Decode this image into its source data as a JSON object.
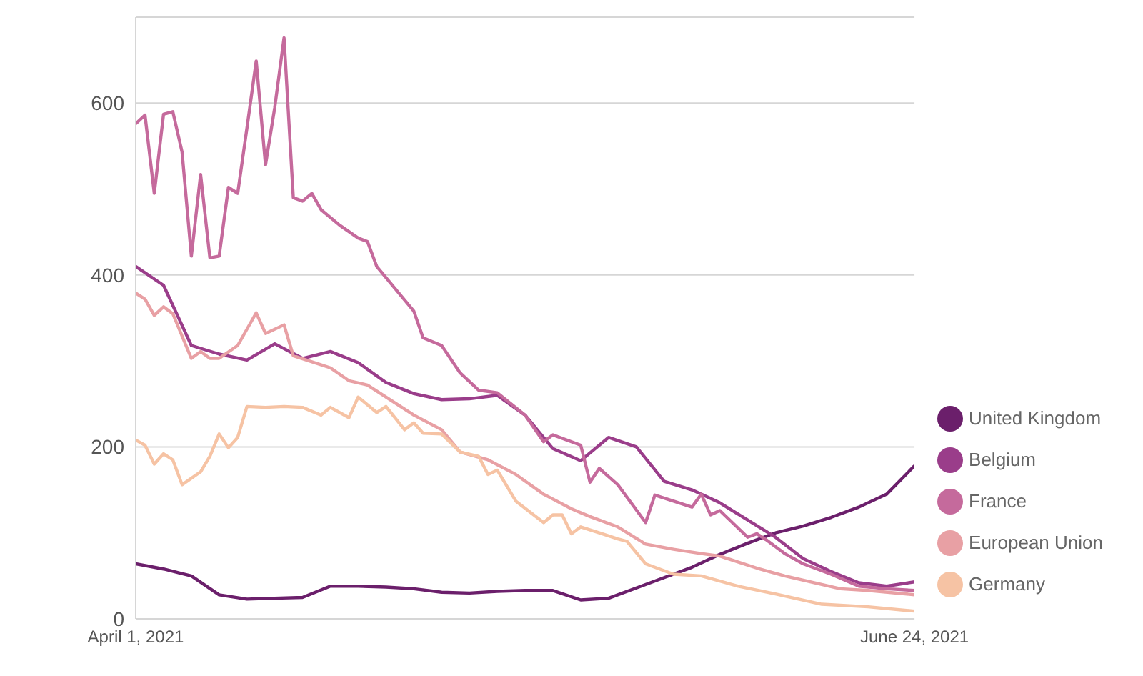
{
  "chart_data": {
    "type": "line",
    "xlim": [
      "2021-04-01",
      "2021-06-24"
    ],
    "xticks": [
      {
        "value": "2021-04-01",
        "label": "April 1, 2021"
      },
      {
        "value": "2021-06-24",
        "label": "June 24, 2021"
      }
    ],
    "ylim": [
      0,
      700
    ],
    "yticks": [
      0,
      200,
      400,
      600
    ],
    "grid": "y",
    "legend": "bottom right",
    "series": [
      {
        "name": "United Kingdom",
        "color": "#6b1f6b",
        "x": [
          "2021-04-01",
          "2021-04-04",
          "2021-04-07",
          "2021-04-10",
          "2021-04-13",
          "2021-04-16",
          "2021-04-19",
          "2021-04-22",
          "2021-04-25",
          "2021-04-28",
          "2021-05-01",
          "2021-05-04",
          "2021-05-07",
          "2021-05-10",
          "2021-05-13",
          "2021-05-16",
          "2021-05-19",
          "2021-05-22",
          "2021-05-25",
          "2021-05-28",
          "2021-05-31",
          "2021-06-03",
          "2021-06-06",
          "2021-06-09",
          "2021-06-12",
          "2021-06-15",
          "2021-06-18",
          "2021-06-21",
          "2021-06-24"
        ],
        "values": [
          64,
          58,
          50,
          28,
          23,
          24,
          25,
          38,
          38,
          37,
          35,
          31,
          30,
          32,
          33,
          33,
          22,
          24,
          36,
          48,
          60,
          75,
          88,
          100,
          108,
          118,
          130,
          145,
          178
        ]
      },
      {
        "name": "Belgium",
        "color": "#9a3d8a",
        "x": [
          "2021-04-01",
          "2021-04-04",
          "2021-04-07",
          "2021-04-10",
          "2021-04-13",
          "2021-04-16",
          "2021-04-19",
          "2021-04-22",
          "2021-04-25",
          "2021-04-28",
          "2021-05-01",
          "2021-05-04",
          "2021-05-07",
          "2021-05-10",
          "2021-05-13",
          "2021-05-16",
          "2021-05-19",
          "2021-05-22",
          "2021-05-25",
          "2021-05-28",
          "2021-05-31",
          "2021-06-03",
          "2021-06-06",
          "2021-06-09",
          "2021-06-12",
          "2021-06-15",
          "2021-06-18",
          "2021-06-21",
          "2021-06-24"
        ],
        "values": [
          410,
          388,
          318,
          308,
          301,
          320,
          303,
          311,
          298,
          275,
          262,
          255,
          256,
          260,
          237,
          198,
          184,
          211,
          200,
          160,
          150,
          135,
          115,
          95,
          70,
          55,
          42,
          38,
          43
        ]
      },
      {
        "name": "France",
        "color": "#c56a9c",
        "x": [
          "2021-04-01",
          "2021-04-02",
          "2021-04-03",
          "2021-04-04",
          "2021-04-05",
          "2021-04-06",
          "2021-04-07",
          "2021-04-08",
          "2021-04-09",
          "2021-04-10",
          "2021-04-11",
          "2021-04-12",
          "2021-04-13",
          "2021-04-14",
          "2021-04-15",
          "2021-04-16",
          "2021-04-17",
          "2021-04-18",
          "2021-04-19",
          "2021-04-20",
          "2021-04-21",
          "2021-04-23",
          "2021-04-25",
          "2021-04-26",
          "2021-04-27",
          "2021-05-01",
          "2021-05-02",
          "2021-05-04",
          "2021-05-06",
          "2021-05-08",
          "2021-05-10",
          "2021-05-13",
          "2021-05-15",
          "2021-05-16",
          "2021-05-19",
          "2021-05-20",
          "2021-05-21",
          "2021-05-23",
          "2021-05-26",
          "2021-05-27",
          "2021-05-31",
          "2021-06-01",
          "2021-06-02",
          "2021-06-03",
          "2021-06-06",
          "2021-06-07",
          "2021-06-08",
          "2021-06-10",
          "2021-06-12",
          "2021-06-15",
          "2021-06-18",
          "2021-06-21",
          "2021-06-24"
        ],
        "values": [
          576,
          586,
          495,
          587,
          590,
          543,
          422,
          517,
          420,
          422,
          502,
          495,
          571,
          649,
          528,
          595,
          676,
          490,
          486,
          495,
          476,
          458,
          443,
          439,
          410,
          358,
          327,
          318,
          286,
          266,
          263,
          237,
          206,
          214,
          202,
          159,
          175,
          156,
          112,
          144,
          130,
          145,
          121,
          126,
          95,
          99,
          92,
          76,
          64,
          52,
          38,
          35,
          33
        ]
      },
      {
        "name": "European Union",
        "color": "#e8a0a4",
        "x": [
          "2021-04-01",
          "2021-04-02",
          "2021-04-03",
          "2021-04-04",
          "2021-04-05",
          "2021-04-06",
          "2021-04-07",
          "2021-04-08",
          "2021-04-09",
          "2021-04-10",
          "2021-04-12",
          "2021-04-14",
          "2021-04-15",
          "2021-04-17",
          "2021-04-18",
          "2021-04-22",
          "2021-04-24",
          "2021-04-26",
          "2021-05-01",
          "2021-05-04",
          "2021-05-06",
          "2021-05-09",
          "2021-05-12",
          "2021-05-15",
          "2021-05-18",
          "2021-05-20",
          "2021-05-23",
          "2021-05-26",
          "2021-05-29",
          "2021-06-01",
          "2021-06-03",
          "2021-06-07",
          "2021-06-10",
          "2021-06-16",
          "2021-06-19",
          "2021-06-24"
        ],
        "values": [
          379,
          372,
          353,
          363,
          355,
          329,
          303,
          311,
          303,
          303,
          318,
          356,
          332,
          342,
          306,
          292,
          277,
          272,
          237,
          220,
          194,
          185,
          168,
          145,
          128,
          119,
          107,
          87,
          81,
          76,
          73,
          59,
          50,
          35,
          33,
          28
        ]
      },
      {
        "name": "Germany",
        "color": "#f6c3a4",
        "x": [
          "2021-04-01",
          "2021-04-02",
          "2021-04-03",
          "2021-04-04",
          "2021-04-05",
          "2021-04-06",
          "2021-04-08",
          "2021-04-09",
          "2021-04-10",
          "2021-04-11",
          "2021-04-12",
          "2021-04-13",
          "2021-04-15",
          "2021-04-17",
          "2021-04-19",
          "2021-04-21",
          "2021-04-22",
          "2021-04-24",
          "2021-04-25",
          "2021-04-27",
          "2021-04-28",
          "2021-04-30",
          "2021-05-01",
          "2021-05-02",
          "2021-05-04",
          "2021-05-06",
          "2021-05-08",
          "2021-05-09",
          "2021-05-10",
          "2021-05-12",
          "2021-05-15",
          "2021-05-16",
          "2021-05-17",
          "2021-05-18",
          "2021-05-19",
          "2021-05-21",
          "2021-05-23",
          "2021-05-24",
          "2021-05-26",
          "2021-05-29",
          "2021-06-01",
          "2021-06-05",
          "2021-06-09",
          "2021-06-14",
          "2021-06-19",
          "2021-06-24"
        ],
        "values": [
          208,
          202,
          180,
          192,
          185,
          156,
          171,
          189,
          215,
          199,
          211,
          247,
          246,
          247,
          246,
          237,
          246,
          234,
          258,
          240,
          247,
          220,
          228,
          216,
          215,
          194,
          189,
          168,
          173,
          137,
          112,
          121,
          121,
          99,
          107,
          100,
          93,
          90,
          64,
          52,
          50,
          38,
          29,
          17,
          14,
          9
        ]
      }
    ]
  }
}
